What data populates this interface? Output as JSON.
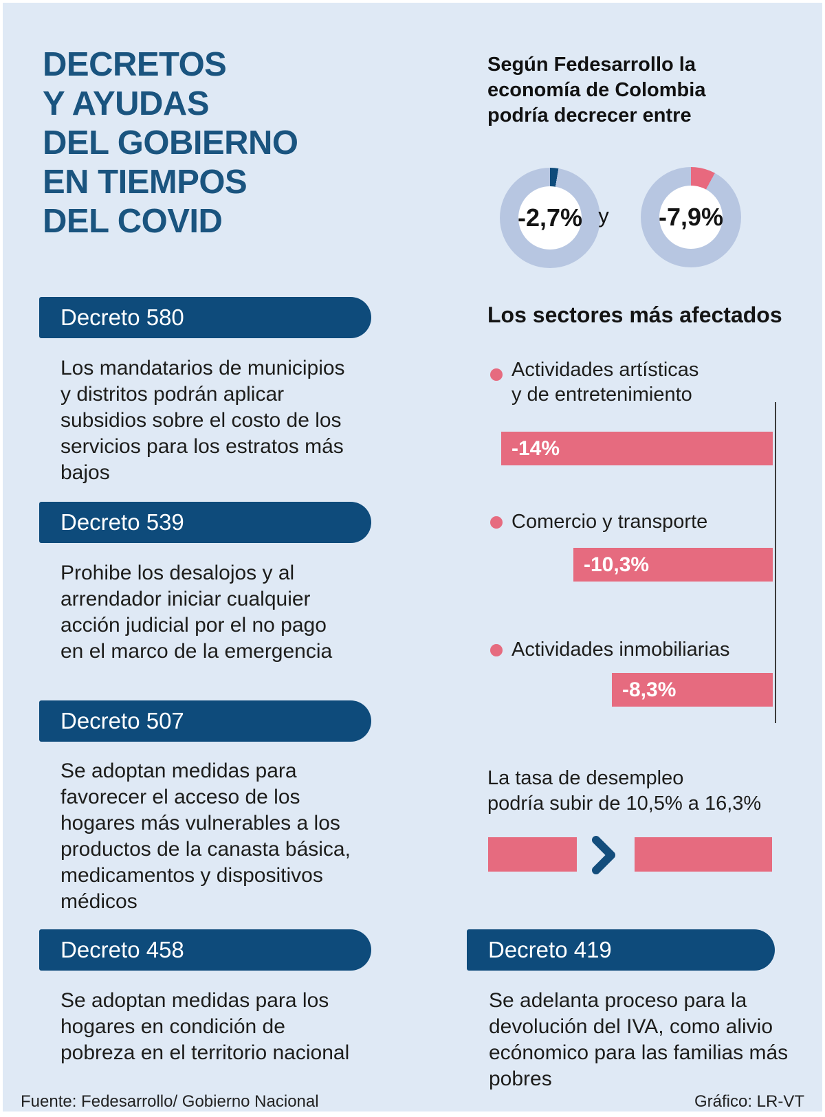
{
  "page": {
    "title": "DECRETOS\nY AYUDAS\nDEL GOBIERNO\nEN TIEMPOS\nDEL COVID",
    "footer_left": "Fuente: Fedesarrollo/ Gobierno Nacional",
    "footer_right": "Gráfico: LR-VT"
  },
  "colors": {
    "bg": "#dfe9f5",
    "dark_blue": "#0e4b7b",
    "title_blue": "#1a547f",
    "pink": "#e66b7f",
    "donut_ring": "#b7c6e1",
    "text_dark": "#1d1d1b",
    "white": "#ffffff"
  },
  "economy": {
    "intro": "Según Fedesarrollo la\neconomía de Colombia\npodría decrecer entre",
    "connector": "y",
    "donuts": [
      {
        "label": "-2,7%",
        "value_pct": 2.7,
        "slice_color": "#0e4b7b"
      },
      {
        "label": "-7,9%",
        "value_pct": 7.9,
        "slice_color": "#e8697e"
      }
    ]
  },
  "sectors": {
    "heading": "Los sectores más afectados",
    "items": [
      {
        "label": "Actividades artísticas\ny de entretenimiento",
        "value": 14,
        "value_label": "-14%"
      },
      {
        "label": "Comercio y transporte",
        "value": 10.3,
        "value_label": "-10,3%"
      },
      {
        "label": "Actividades inmobiliarias",
        "value": 8.3,
        "value_label": "-8,3%"
      }
    ]
  },
  "unemployment": {
    "text": "La tasa de desempleo\npodría subir de 10,5% a 16,3%",
    "from_value": 10.5,
    "to_value": 16.3
  },
  "decrees": [
    {
      "number": "Decreto 580",
      "description": "Los mandatarios de municipios\ny distritos podrán aplicar\nsubsidios sobre el costo de los\nservicios para los estratos más\nbajos"
    },
    {
      "number": "Decreto 539",
      "description": "Prohibe los desalojos y  al\narrendador iniciar cualquier\nacción judicial por el no pago\nen el marco de la emergencia"
    },
    {
      "number": "Decreto 507",
      "description": "Se adoptan medidas para\nfavorecer el acceso de los\nhogares más vulnerables a los\nproductos de la canasta básica,\nmedicamentos y dispositivos\nmédicos"
    },
    {
      "number": "Decreto 458",
      "description": "Se adoptan medidas para los\nhogares en condición de\npobreza en el territorio nacional"
    }
  ],
  "decree_right": {
    "number": "Decreto 419",
    "description": "Se adelanta proceso para la\ndevolución del IVA, como alivio\necónomico para las familias más\npobres"
  },
  "chart_data": [
    {
      "type": "pie",
      "subtype": "donut-gauge-pair",
      "title": "Según Fedesarrollo la economía de Colombia podría decrecer entre",
      "labels": [
        "-2,7%",
        "-7,9%"
      ],
      "values": [
        2.7,
        7.9
      ],
      "units": "% of full circle shown as colored slice starting at 12 o'clock",
      "slice_colors": [
        "#0e4b7b",
        "#e8697e"
      ],
      "ring_color": "#b7c6e1",
      "connector_text": "y"
    },
    {
      "type": "bar",
      "orientation": "horizontal",
      "title": "Los sectores más afectados",
      "categories": [
        "Actividades artísticas y de entretenimiento",
        "Comercio y transporte",
        "Actividades inmobiliarias"
      ],
      "values": [
        -14,
        -10.3,
        -8.3
      ],
      "data_labels": [
        "-14%",
        "-10,3%",
        "-8,3%"
      ],
      "bar_color": "#e66b7f",
      "layout": "bars right-aligned to a shared vertical baseline (zero axis) on the right; length grows leftward with magnitude"
    },
    {
      "type": "bar",
      "orientation": "horizontal",
      "title": "La tasa de desempleo podría subir de 10,5% a 16,3%",
      "categories": [
        "tasa actual",
        "tasa proyectada"
      ],
      "values": [
        10.5,
        16.3
      ],
      "data_labels": [],
      "bar_color": "#e66b7f",
      "layout": "two unlabeled bars separated by a right-pointing chevron"
    }
  ]
}
